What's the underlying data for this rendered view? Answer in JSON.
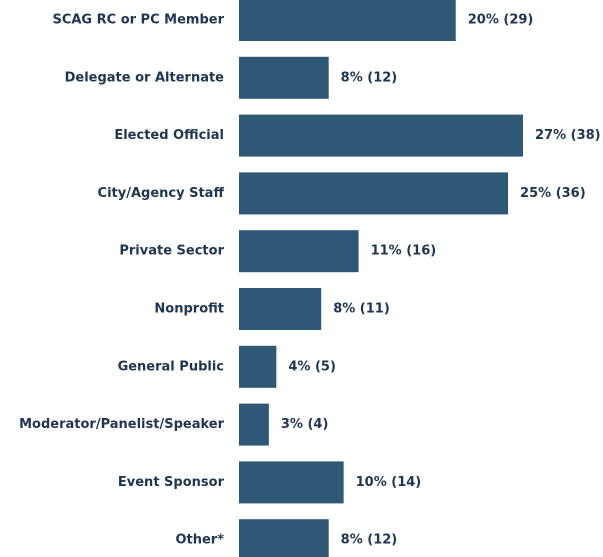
{
  "chart_data": {
    "type": "bar",
    "orientation": "horizontal",
    "categories": [
      "SCAG RC or PC Member",
      "Delegate or Alternate",
      "Elected Official",
      "City/Agency Staff",
      "Private Sector",
      "Nonprofit",
      "General Public",
      "Moderator/Panelist/Speaker",
      "Event Sponsor",
      "Other*"
    ],
    "values": [
      29,
      12,
      38,
      36,
      16,
      11,
      5,
      4,
      14,
      12
    ],
    "value_labels": [
      "20% (29)",
      "8% (12)",
      "27% (38)",
      "25% (36)",
      "11% (16)",
      "8% (11)",
      "4% (5)",
      "3% (4)",
      "10% (14)",
      "8% (12)"
    ],
    "color": "#2e5876"
  }
}
